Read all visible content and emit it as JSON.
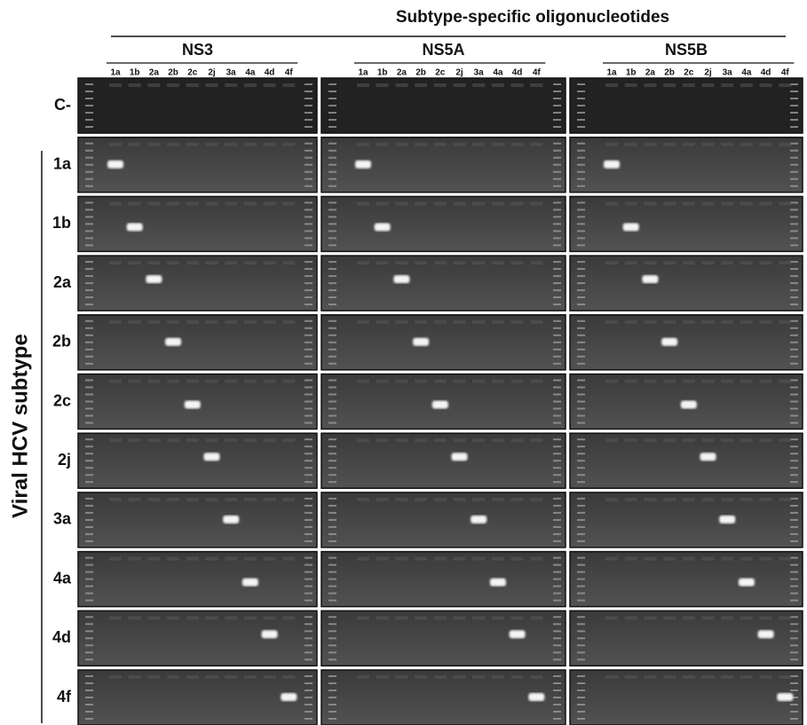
{
  "title": "Subtype-specific oligonucleotides",
  "y_label": "Viral HCV subtype",
  "panels": [
    "NS3",
    "NS5A",
    "NS5B"
  ],
  "lanes": [
    "1a",
    "1b",
    "2a",
    "2b",
    "2c",
    "2j",
    "3a",
    "4a",
    "4d",
    "4f"
  ],
  "rows": [
    "C-",
    "1a",
    "1b",
    "2a",
    "2b",
    "2c",
    "2j",
    "3a",
    "4a",
    "4d",
    "4f"
  ]
}
